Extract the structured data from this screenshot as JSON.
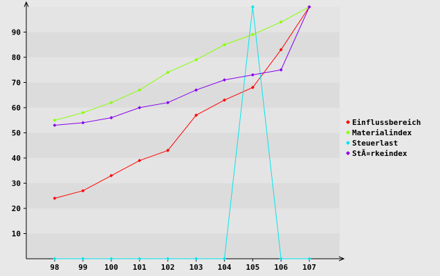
{
  "chart_data": {
    "type": "line",
    "title": "",
    "xlabel": "",
    "ylabel": "",
    "x": [
      98,
      99,
      100,
      101,
      102,
      103,
      104,
      105,
      106,
      107
    ],
    "x_tick_labels": [
      "98",
      "99",
      "100",
      "101",
      "102",
      "103",
      "104",
      "105",
      "106",
      "107"
    ],
    "ylim": [
      0,
      100
    ],
    "y_ticks": [
      10,
      20,
      30,
      40,
      50,
      60,
      70,
      80,
      90
    ],
    "y_tick_labels": [
      "10",
      "20",
      "30",
      "40",
      "50",
      "60",
      "70",
      "80",
      "90"
    ],
    "grid": "horizontal alternating bands",
    "legend_position": "right",
    "series": [
      {
        "name": "Einflussbereich",
        "color": "#ff0000",
        "values": [
          24,
          27,
          33,
          39,
          43,
          57,
          63,
          68,
          83,
          100
        ]
      },
      {
        "name": "Materialindex",
        "color": "#88ff00",
        "values": [
          55,
          58,
          62,
          67,
          74,
          79,
          85,
          89,
          94,
          100
        ]
      },
      {
        "name": "Steuerlast",
        "color": "#00e5ee",
        "values": [
          0,
          0,
          0,
          0,
          0,
          0,
          0,
          100,
          0,
          0
        ]
      },
      {
        "name": "StÃ¤rkeindex",
        "color": "#8800ee",
        "values": [
          53,
          54,
          56,
          60,
          62,
          67,
          71,
          73,
          75,
          100
        ]
      }
    ]
  }
}
